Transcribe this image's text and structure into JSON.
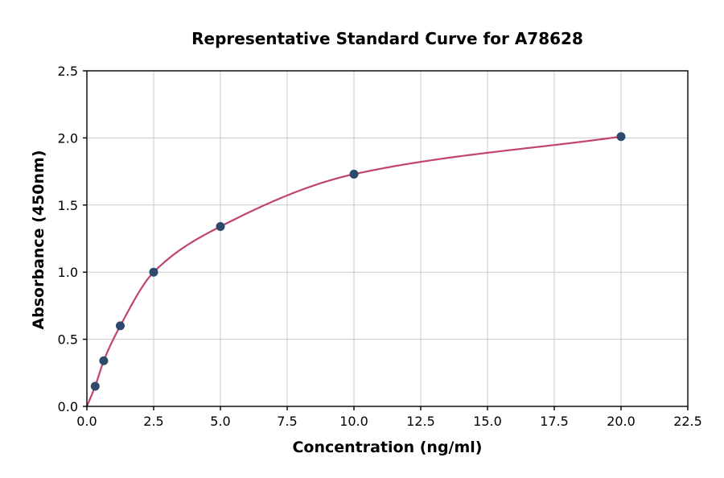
{
  "chart_data": {
    "type": "scatter",
    "title": "Representative Standard Curve for A78628",
    "xlabel": "Concentration (ng/ml)",
    "ylabel": "Absorbance (450nm)",
    "xlim": [
      0,
      22.5
    ],
    "ylim": [
      0,
      2.5
    ],
    "x_ticks": [
      0.0,
      2.5,
      5.0,
      7.5,
      10.0,
      12.5,
      15.0,
      17.5,
      20.0,
      22.5
    ],
    "x_tick_labels": [
      "0.0",
      "2.5",
      "5.0",
      "7.5",
      "10.0",
      "12.5",
      "15.0",
      "17.5",
      "20.0",
      "22.5"
    ],
    "y_ticks": [
      0.0,
      0.5,
      1.0,
      1.5,
      2.0,
      2.5
    ],
    "y_tick_labels": [
      "0.0",
      "0.5",
      "1.0",
      "1.5",
      "2.0",
      "2.5"
    ],
    "grid": true,
    "legend": "none",
    "points": [
      [
        0.31,
        0.15
      ],
      [
        0.63,
        0.34
      ],
      [
        1.25,
        0.6
      ],
      [
        2.5,
        1.0
      ],
      [
        5.0,
        1.34
      ],
      [
        10.0,
        1.73
      ],
      [
        20.0,
        2.01
      ]
    ],
    "curve_start": [
      0.0,
      0.0
    ],
    "colors": {
      "point": "#2d4a6d",
      "curve": "#c2446e",
      "grid": "#c9c9c9",
      "spine": "#000000"
    }
  }
}
